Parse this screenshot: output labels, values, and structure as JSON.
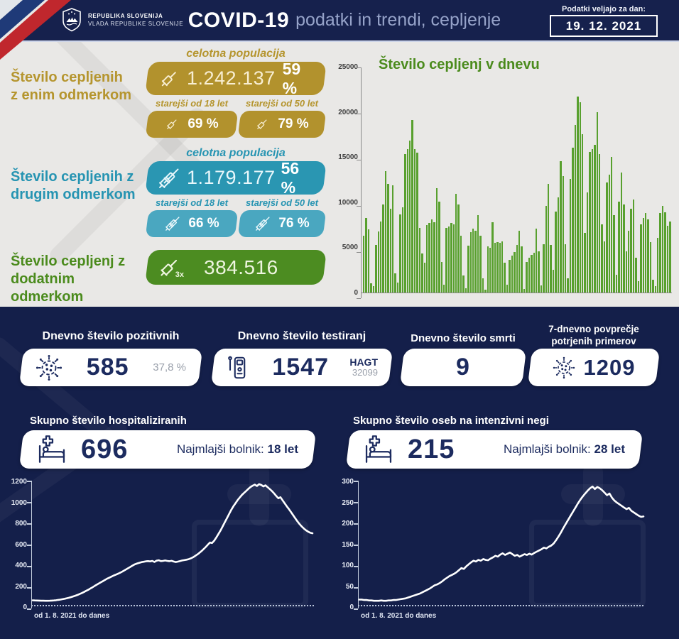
{
  "header": {
    "gov_line1": "REPUBLIKA SLOVENIJA",
    "gov_line2": "VLADA REPUBLIKE SLOVENIJE",
    "title_bold": "COVID-19",
    "title_rest": "podatki in trendi, cepljenje",
    "date_label": "Podatki veljajo za dan:",
    "date_value": "19. 12. 2021"
  },
  "vaccination": {
    "dose1": {
      "title_l1": "Število cepljenih",
      "title_l2": "z enim odmerkom",
      "pop_label": "celotna populacija",
      "count": "1.242.137",
      "pct": "59 %",
      "over18_label": "starejši od 18 let",
      "over18_pct": "69 %",
      "over50_label": "starejši od 50 let",
      "over50_pct": "79 %",
      "color": "#b2922d"
    },
    "dose2": {
      "title_l1": "Število cepljenih z",
      "title_l2": "drugim odmerkom",
      "pop_label": "celotna populacija",
      "count": "1.179.177",
      "pct": "56 %",
      "over18_label": "starejši od 18 let",
      "over18_pct": "66 %",
      "over50_label": "starejši od 50 let",
      "over50_pct": "76 %",
      "color": "#2a96b2"
    },
    "booster": {
      "title_l1": "Število cepljenj z",
      "title_l2": "dodatnim odmerkom",
      "count": "384.516",
      "multiplier": "3x",
      "color": "#4c8c21"
    }
  },
  "daily_stats": {
    "positive": {
      "title": "Dnevno število pozitivnih",
      "value": "585",
      "share": "37,8 %"
    },
    "tests": {
      "title": "Dnevno število testiranj",
      "value": "1547",
      "hagt_label": "HAGT",
      "hagt_value": "32099"
    },
    "deaths": {
      "title": "Dnevno število smrti",
      "value": "9"
    },
    "avg7": {
      "title_l1": "7-dnevno povprečje",
      "title_l2": "potrjenih primerov",
      "value": "1209"
    }
  },
  "hospital": {
    "title": "Skupno število hospitaliziranih",
    "value": "696",
    "youngest_label": "Najmlajši bolnik:",
    "youngest_value": "18 let",
    "caption": "od 1. 8. 2021 do danes"
  },
  "icu": {
    "title": "Skupno število oseb na intenzivni negi",
    "value": "215",
    "youngest_label": "Najmlajši bolnik:",
    "youngest_value": "28 let",
    "caption": "od 1. 8. 2021 do danes"
  },
  "icons": {
    "dose1": "syringe-icon",
    "dose2": "double-syringe-icon",
    "booster": "syringe-3x-icon",
    "positive": "virus-icon",
    "tests": "antigen-test-icon",
    "avg7": "virus-icon",
    "hospital": "hospital-bed-icon",
    "icu": "hospital-bed-icon",
    "header": "slovenia-coat-of-arms"
  },
  "colors": {
    "navy_bg": "#141f4a",
    "header_bg": "#16214d",
    "gray_bg": "#e9e8e6",
    "gold": "#b2922d",
    "blue": "#2a96b2",
    "blue_light": "#4aa7c0",
    "green": "#4c8c21",
    "bar_green": "#58a02e",
    "navy_text": "#1c2b5f",
    "white": "#ffffff"
  },
  "chart_data": [
    {
      "type": "bar",
      "title": "Število cepljenj v dnevu",
      "xlabel": "",
      "ylabel": "",
      "ylim": [
        0,
        25000
      ],
      "yticks": [
        25000,
        20000,
        15000,
        10000,
        5000,
        0
      ],
      "grid": false,
      "bar_color": "#58a02e",
      "values": [
        6300,
        8300,
        7000,
        1000,
        700,
        5300,
        6800,
        7900,
        9800,
        13500,
        12100,
        9300,
        11900,
        2100,
        1100,
        8700,
        9500,
        15400,
        15900,
        16900,
        19200,
        15900,
        15500,
        7200,
        4300,
        3300,
        7500,
        7700,
        8100,
        7800,
        11600,
        10100,
        3400,
        900,
        7200,
        7300,
        7700,
        7600,
        11000,
        9800,
        6300,
        1900,
        500,
        5200,
        6700,
        7100,
        6900,
        8600,
        6300,
        1600,
        300,
        5100,
        5000,
        7800,
        5500,
        5600,
        5500,
        5700,
        3300,
        900,
        3600,
        4100,
        4500,
        5300,
        6900,
        5100,
        400,
        3400,
        3900,
        4200,
        4400,
        7100,
        4600,
        800,
        5400,
        9600,
        12100,
        5300,
        2500,
        9000,
        10600,
        14600,
        12900,
        5400,
        1600,
        12600,
        16100,
        18600,
        21800,
        21100,
        17600,
        6600,
        11100,
        15600,
        15900,
        16400,
        20000,
        15400,
        7600,
        5700,
        12200,
        13100,
        15100,
        8600,
        2000,
        10100,
        13300,
        9800,
        4600,
        6900,
        9300,
        10300,
        3900,
        1300,
        7600,
        8300,
        8800,
        8100,
        5600,
        1400,
        700,
        6100,
        8800,
        9600,
        8900,
        7400,
        7900
      ]
    },
    {
      "type": "line",
      "title": "Skupno število hospitaliziranih",
      "xlabel": "od 1. 8. 2021 do danes",
      "ylim": [
        0,
        1200
      ],
      "yticks": [
        1200,
        1000,
        800,
        600,
        400,
        200,
        0
      ],
      "line_color": "#ffffff",
      "values": [
        45,
        44,
        43,
        42,
        41,
        41,
        40,
        40,
        41,
        42,
        44,
        46,
        49,
        52,
        56,
        60,
        65,
        70,
        76,
        83,
        90,
        98,
        107,
        116,
        126,
        137,
        148,
        160,
        172,
        185,
        198,
        210,
        222,
        234,
        246,
        258,
        268,
        278,
        288,
        296,
        305,
        315,
        326,
        338,
        350,
        362,
        375,
        388,
        398,
        406,
        412,
        418,
        422,
        426,
        428,
        425,
        430,
        420,
        432,
        436,
        428,
        430,
        434,
        430,
        427,
        431,
        424,
        419,
        423,
        429,
        434,
        438,
        442,
        447,
        455,
        465,
        478,
        492,
        508,
        525,
        545,
        565,
        588,
        610,
        605,
        628,
        660,
        695,
        730,
        770,
        810,
        850,
        890,
        930,
        965,
        995,
        1025,
        1050,
        1075,
        1095,
        1115,
        1135,
        1152,
        1165,
        1175,
        1162,
        1180,
        1172,
        1158,
        1168,
        1150,
        1132,
        1112,
        1090,
        1065,
        1042,
        1052,
        1022,
        992,
        962,
        935,
        905,
        875,
        845,
        815,
        788,
        765,
        745,
        728,
        715,
        705,
        700
      ]
    },
    {
      "type": "line",
      "title": "Skupno število oseb na intenzivni negi",
      "xlabel": "od 1. 8. 2021 do danes",
      "ylim": [
        0,
        300
      ],
      "yticks": [
        300,
        250,
        200,
        150,
        100,
        50,
        0
      ],
      "line_color": "#ffffff",
      "values": [
        13,
        13,
        12,
        12,
        11,
        11,
        10,
        10,
        10,
        11,
        10,
        10,
        11,
        11,
        12,
        12,
        13,
        14,
        15,
        16,
        18,
        20,
        22,
        24,
        26,
        28,
        31,
        34,
        37,
        40,
        44,
        48,
        50,
        53,
        57,
        62,
        66,
        70,
        73,
        76,
        80,
        85,
        90,
        88,
        94,
        99,
        104,
        108,
        106,
        110,
        108,
        112,
        110,
        109,
        113,
        116,
        120,
        118,
        123,
        126,
        122,
        125,
        128,
        124,
        120,
        122,
        118,
        121,
        124,
        122,
        125,
        123,
        127,
        130,
        133,
        136,
        140,
        138,
        142,
        145,
        150,
        158,
        167,
        177,
        188,
        198,
        208,
        218,
        228,
        238,
        248,
        257,
        265,
        272,
        279,
        285,
        289,
        283,
        288,
        285,
        280,
        274,
        268,
        272,
        262,
        255,
        250,
        246,
        242,
        238,
        234,
        237,
        230,
        226,
        222,
        218,
        215,
        216
      ]
    }
  ]
}
